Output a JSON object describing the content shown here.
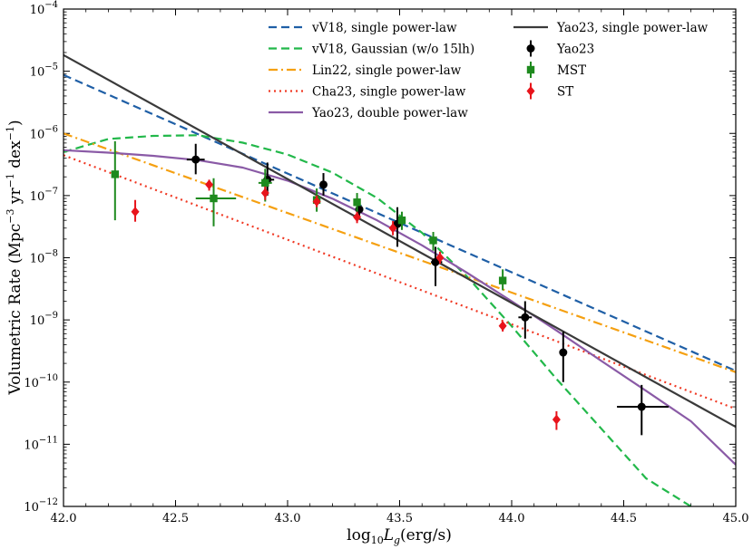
{
  "chart_data": {
    "type": "line",
    "title": "",
    "xlabel": "log10 L_g (erg/s)",
    "ylabel": "Volumetric Rate (Mpc^-3 yr^-1 dex^-1)",
    "xlabel_parts": {
      "pre": "log",
      "sub": "10",
      "var": "L",
      "varsub": "g",
      "post": "(erg/s)"
    },
    "ylabel_parts": {
      "pre": "Volumetric Rate (Mpc",
      "sup1": "−3",
      "mid": " yr",
      "sup2": "−1",
      "mid2": " dex",
      "sup3": "−1",
      "post": ")"
    },
    "xlim": [
      42.0,
      45.0
    ],
    "ylim_log10": [
      -12,
      -4
    ],
    "y_scale": "log",
    "legend_position": "top-right",
    "x_ticks": [
      "42.0",
      "42.5",
      "43.0",
      "43.5",
      "44.0",
      "44.5",
      "45.0"
    ],
    "y_ticks": [
      {
        "base": "10",
        "exp": "−4",
        "logv": -4
      },
      {
        "base": "10",
        "exp": "−5",
        "logv": -5
      },
      {
        "base": "10",
        "exp": "−6",
        "logv": -6
      },
      {
        "base": "10",
        "exp": "−7",
        "logv": -7
      },
      {
        "base": "10",
        "exp": "−8",
        "logv": -8
      },
      {
        "base": "10",
        "exp": "−9",
        "logv": -9
      },
      {
        "base": "10",
        "exp": "−10",
        "logv": -10
      },
      {
        "base": "10",
        "exp": "−11",
        "logv": -11
      },
      {
        "base": "10",
        "exp": "−12",
        "logv": -12
      }
    ],
    "lines": [
      {
        "name": "vV18, single power-law",
        "color": "#1f5fa6",
        "dash": "dashed",
        "x": [
          42.0,
          45.0
        ],
        "log_y": [
          -5.06,
          -9.82
        ]
      },
      {
        "name": "vV18, Gaussian (w/o 15lh)",
        "color": "#22b84a",
        "dash": "dashed",
        "x": [
          42.0,
          42.2,
          42.4,
          42.6,
          42.8,
          43.0,
          43.2,
          43.4,
          43.6,
          43.8,
          44.0,
          44.2,
          44.4,
          44.6,
          44.8
        ],
        "log_y": [
          -6.3,
          -6.09,
          -6.04,
          -6.03,
          -6.15,
          -6.34,
          -6.63,
          -7.04,
          -7.6,
          -8.3,
          -9.1,
          -9.95,
          -10.75,
          -11.55,
          -12.0
        ]
      },
      {
        "name": "Lin22, single power-law",
        "color": "#f5a011",
        "dash": "dashdot",
        "x": [
          42.0,
          45.0
        ],
        "log_y": [
          -6.0,
          -9.84
        ]
      },
      {
        "name": "Cha23, single power-law",
        "color": "#f03a25",
        "dash": "dotted",
        "x": [
          42.0,
          45.0
        ],
        "log_y": [
          -6.35,
          -10.43
        ]
      },
      {
        "name": "Yao23, double power-law",
        "color": "#8a5aa6",
        "dash": "solid",
        "x": [
          42.0,
          42.2,
          42.4,
          42.6,
          42.8,
          43.0,
          43.2,
          43.4,
          43.6,
          43.8,
          44.0,
          44.2,
          44.4,
          44.6,
          44.8,
          45.0
        ],
        "log_y": [
          -6.27,
          -6.31,
          -6.36,
          -6.43,
          -6.55,
          -6.76,
          -7.05,
          -7.4,
          -7.8,
          -8.24,
          -8.7,
          -9.17,
          -9.66,
          -10.14,
          -10.63,
          -11.33
        ]
      },
      {
        "name": "Yao23, single power-law",
        "color": "#3a3a3a",
        "dash": "solid",
        "x": [
          42.0,
          45.0
        ],
        "log_y": [
          -4.74,
          -10.72
        ]
      }
    ],
    "points": [
      {
        "name": "Yao23",
        "color": "#000000",
        "marker": "circle",
        "data": [
          {
            "x": 42.59,
            "y": 3.8e-07,
            "ylo": 2.2e-07,
            "yhi": 6.8e-07,
            "xlo": 42.55,
            "xhi": 42.63
          },
          {
            "x": 42.91,
            "y": 1.8e-07,
            "ylo": 1e-07,
            "yhi": 3.4e-07,
            "xlo": 42.89,
            "xhi": 42.94
          },
          {
            "x": 43.16,
            "y": 1.5e-07,
            "ylo": 1e-07,
            "yhi": 2.3e-07,
            "xlo": 43.15,
            "xhi": 43.17
          },
          {
            "x": 43.32,
            "y": 6e-08,
            "ylo": 4.5e-08,
            "yhi": 8e-08,
            "xlo": 43.31,
            "xhi": 43.33
          },
          {
            "x": 43.49,
            "y": 3.5e-08,
            "ylo": 1.5e-08,
            "yhi": 6.5e-08,
            "xlo": 43.47,
            "xhi": 43.51
          },
          {
            "x": 43.66,
            "y": 8.5e-09,
            "ylo": 3.5e-09,
            "yhi": 1.5e-08,
            "xlo": 43.64,
            "xhi": 43.69
          },
          {
            "x": 44.06,
            "y": 1.1e-09,
            "ylo": 5e-10,
            "yhi": 2e-09,
            "xlo": 44.03,
            "xhi": 44.09
          },
          {
            "x": 44.23,
            "y": 3e-10,
            "ylo": 1e-10,
            "yhi": 6.5e-10,
            "xlo": 44.22,
            "xhi": 44.24
          },
          {
            "x": 44.58,
            "y": 4e-11,
            "ylo": 1.4e-11,
            "yhi": 9e-11,
            "xlo": 44.47,
            "xhi": 44.7
          }
        ]
      },
      {
        "name": "MST",
        "color": "#1e8a1e",
        "marker": "square",
        "data": [
          {
            "x": 42.23,
            "y": 2.2e-07,
            "ylo": 4e-08,
            "yhi": 7.5e-07,
            "xlo": 42.22,
            "xhi": 42.24
          },
          {
            "x": 42.67,
            "y": 9e-08,
            "ylo": 3.2e-08,
            "yhi": 1.9e-07,
            "xlo": 42.59,
            "xhi": 42.77
          },
          {
            "x": 42.9,
            "y": 1.6e-07,
            "ylo": 8e-08,
            "yhi": 2.7e-07,
            "xlo": 42.87,
            "xhi": 42.93
          },
          {
            "x": 43.13,
            "y": 8.5e-08,
            "ylo": 5.5e-08,
            "yhi": 1.3e-07,
            "xlo": 43.12,
            "xhi": 43.14
          },
          {
            "x": 43.31,
            "y": 7.8e-08,
            "ylo": 5.5e-08,
            "yhi": 1.1e-07,
            "xlo": 43.3,
            "xhi": 43.32
          },
          {
            "x": 43.51,
            "y": 4e-08,
            "ylo": 2.8e-08,
            "yhi": 5.5e-08,
            "xlo": 43.5,
            "xhi": 43.52
          },
          {
            "x": 43.65,
            "y": 1.9e-08,
            "ylo": 1.3e-08,
            "yhi": 2.6e-08,
            "xlo": 43.64,
            "xhi": 43.66
          },
          {
            "x": 43.96,
            "y": 4.3e-09,
            "ylo": 3e-09,
            "yhi": 6.5e-09,
            "xlo": 43.95,
            "xhi": 43.97
          }
        ]
      },
      {
        "name": "ST",
        "color": "#e8141b",
        "marker": "diamond",
        "data": [
          {
            "x": 42.32,
            "y": 5.5e-08,
            "ylo": 3.8e-08,
            "yhi": 8.5e-08,
            "xlo": 42.31,
            "xhi": 42.33
          },
          {
            "x": 42.65,
            "y": 1.5e-07,
            "ylo": 1.2e-07,
            "yhi": 1.8e-07,
            "xlo": 42.64,
            "xhi": 42.66
          },
          {
            "x": 42.9,
            "y": 1.1e-07,
            "ylo": 8.5e-08,
            "yhi": 1.4e-07,
            "xlo": 42.89,
            "xhi": 42.91
          },
          {
            "x": 43.13,
            "y": 8e-08,
            "ylo": 6.5e-08,
            "yhi": 1e-07,
            "xlo": 43.12,
            "xhi": 43.14
          },
          {
            "x": 43.31,
            "y": 4.5e-08,
            "ylo": 3.6e-08,
            "yhi": 5.5e-08,
            "xlo": 43.3,
            "xhi": 43.32
          },
          {
            "x": 43.47,
            "y": 3e-08,
            "ylo": 2.3e-08,
            "yhi": 3.9e-08,
            "xlo": 43.46,
            "xhi": 43.48
          },
          {
            "x": 43.68,
            "y": 1e-08,
            "ylo": 8e-09,
            "yhi": 1.25e-08,
            "xlo": 43.67,
            "xhi": 43.69
          },
          {
            "x": 43.96,
            "y": 8e-10,
            "ylo": 6.5e-10,
            "yhi": 9.5e-10,
            "xlo": 43.95,
            "xhi": 43.97
          },
          {
            "x": 44.2,
            "y": 2.5e-11,
            "ylo": 1.7e-11,
            "yhi": 3.4e-11,
            "xlo": 44.19,
            "xhi": 44.21
          }
        ]
      }
    ],
    "legend": [
      {
        "label": "vV18, single power-law",
        "kind": "line",
        "ref": 0
      },
      {
        "label": "vV18, Gaussian (w/o 15lh)",
        "kind": "line",
        "ref": 1
      },
      {
        "label": "Lin22, single power-law",
        "kind": "line",
        "ref": 2
      },
      {
        "label": "Cha23, single power-law",
        "kind": "line",
        "ref": 3
      },
      {
        "label": "Yao23, double power-law",
        "kind": "line",
        "ref": 4
      },
      {
        "label": "Yao23, single power-law",
        "kind": "line",
        "ref": 5
      },
      {
        "label": "Yao23",
        "kind": "point",
        "ref": 0
      },
      {
        "label": "MST",
        "kind": "point",
        "ref": 1
      },
      {
        "label": "ST",
        "kind": "point",
        "ref": 2
      }
    ]
  }
}
